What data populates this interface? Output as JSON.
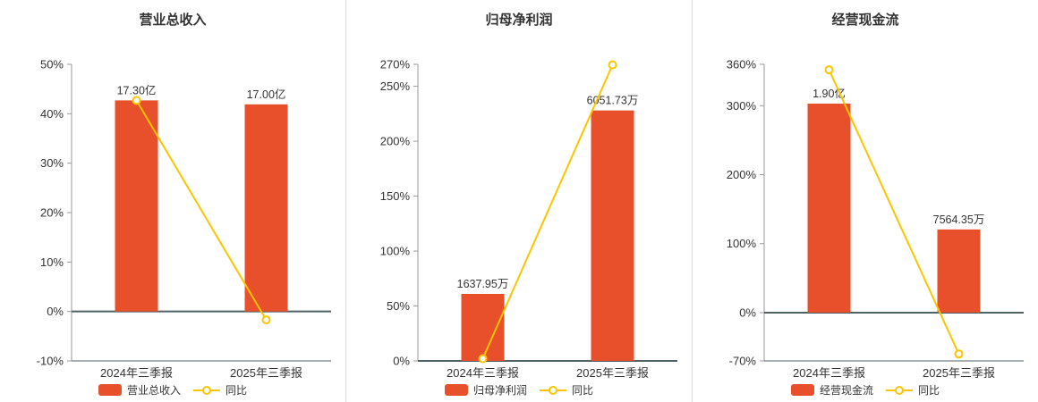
{
  "colors": {
    "bar": "#e8502b",
    "line": "#fdc400",
    "axis_dark": "#4f6164",
    "axis_light": "#999999",
    "title": "#333333",
    "text": "#333333",
    "divider": "#e0e0e0"
  },
  "chart_data": [
    {
      "type": "bar",
      "title": "营业总收入",
      "categories": [
        "2024年三季报",
        "2025年三季报"
      ],
      "ylim": [
        -10,
        50
      ],
      "yticks": [
        50,
        40,
        30,
        20,
        10,
        0,
        -10
      ],
      "ytick_suffix": "%",
      "grid": false,
      "legend_position": "bottom",
      "series": [
        {
          "name": "营业总收入",
          "type": "bar",
          "labels": [
            "17.30亿",
            "17.00亿"
          ],
          "plot_pct": [
            42.7,
            41.9
          ]
        },
        {
          "name": "同比",
          "type": "line",
          "values": [
            42.7,
            -1.7
          ]
        }
      ]
    },
    {
      "type": "bar",
      "title": "归母净利润",
      "categories": [
        "2024年三季报",
        "2025年三季报"
      ],
      "ylim": [
        0,
        270
      ],
      "yticks": [
        270,
        250,
        200,
        150,
        100,
        50,
        0
      ],
      "ytick_suffix": "%",
      "grid": false,
      "legend_position": "bottom",
      "series": [
        {
          "name": "归母净利润",
          "type": "bar",
          "labels": [
            "1637.95万",
            "6051.73万"
          ],
          "plot_pct": [
            61,
            228
          ]
        },
        {
          "name": "同比",
          "type": "line",
          "values": [
            2,
            269.5
          ]
        }
      ]
    },
    {
      "type": "bar",
      "title": "经营现金流",
      "categories": [
        "2024年三季报",
        "2025年三季报"
      ],
      "ylim": [
        -70,
        360
      ],
      "yticks": [
        360,
        300,
        200,
        100,
        0,
        -70
      ],
      "ytick_suffix": "%",
      "grid": false,
      "legend_position": "bottom",
      "series": [
        {
          "name": "经营现金流",
          "type": "bar",
          "labels": [
            "1.90亿",
            "7564.35万"
          ],
          "plot_pct": [
            303,
            120.6
          ]
        },
        {
          "name": "同比",
          "type": "line",
          "values": [
            352,
            -60
          ]
        }
      ]
    }
  ]
}
